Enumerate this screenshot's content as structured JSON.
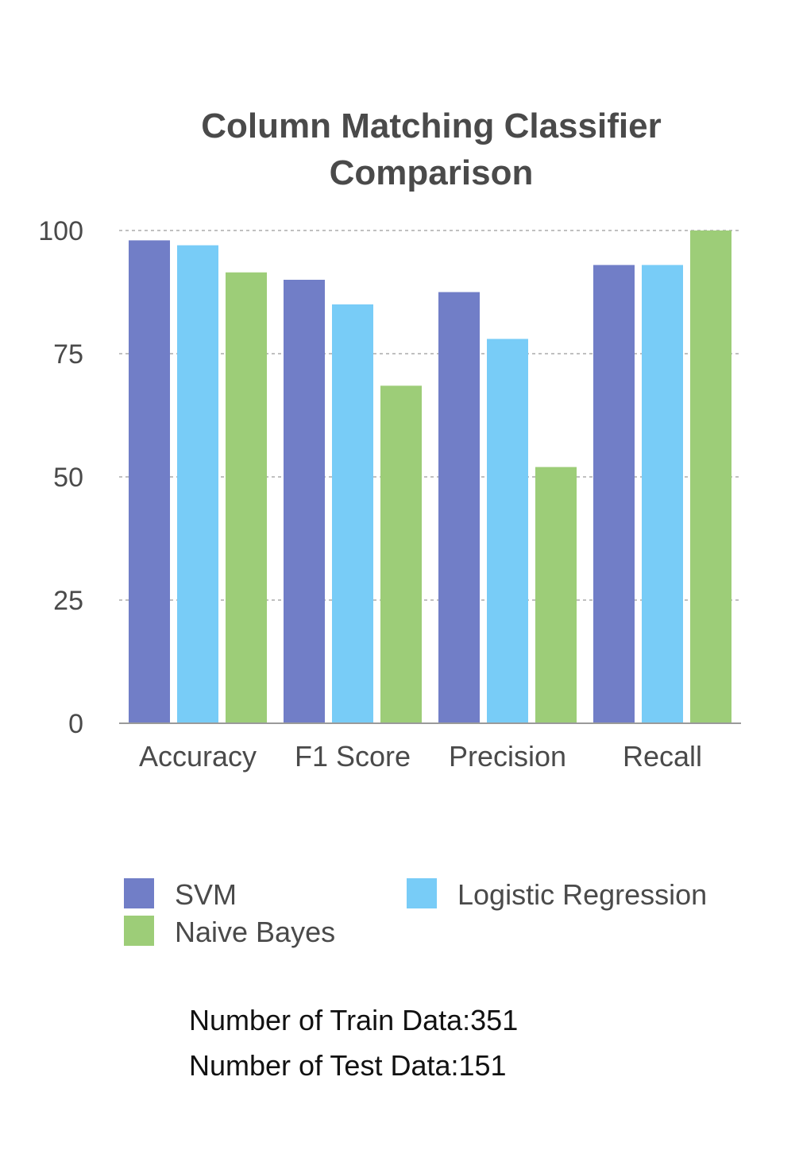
{
  "chart_data": {
    "type": "bar",
    "title": "Column Matching Classifier Comparison",
    "title_lines": [
      "Column Matching Classifier",
      "Comparison"
    ],
    "categories": [
      "Accuracy",
      "F1 Score",
      "Precision",
      "Recall"
    ],
    "series": [
      {
        "name": "SVM",
        "color": "#717ec7",
        "values": [
          98.0,
          90.0,
          87.5,
          93.0
        ]
      },
      {
        "name": "Logistic Regression",
        "color": "#78ccf7",
        "values": [
          97.0,
          85.0,
          78.0,
          93.0
        ]
      },
      {
        "name": "Naive Bayes",
        "color": "#9dcd78",
        "values": [
          91.5,
          68.5,
          52.0,
          100.0
        ]
      }
    ],
    "ylim": [
      0,
      100
    ],
    "yticks": [
      0,
      25,
      50,
      75,
      100
    ],
    "xlabel": "",
    "ylabel": "",
    "grid": true,
    "legend_position": "bottom"
  },
  "notes": [
    "Number of Train Data:351",
    "Number of Test Data:151"
  ]
}
